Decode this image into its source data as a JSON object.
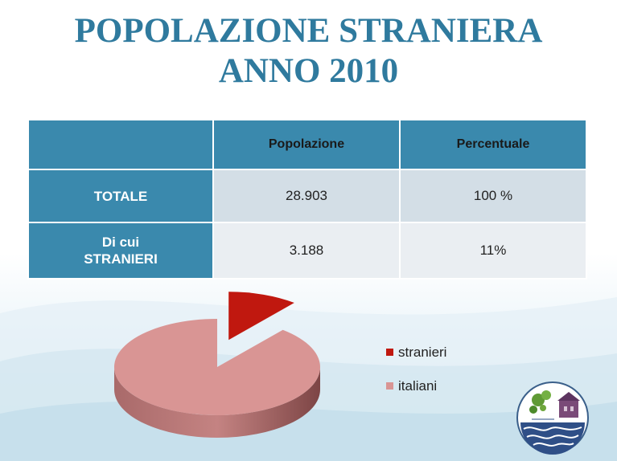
{
  "title": {
    "line1": "POPOLAZIONE STRANIERA",
    "line2": "ANNO 2010"
  },
  "table": {
    "headers": [
      "",
      "Popolazione",
      "Percentuale"
    ],
    "rows": [
      {
        "label": "TOTALE",
        "popolazione": "28.903",
        "percentuale": "100 %"
      },
      {
        "label_line1": "Di cui",
        "label_line2": "STRANIERI",
        "popolazione": "3.188",
        "percentuale": "11%"
      }
    ]
  },
  "chart_data": {
    "type": "pie",
    "style": "3d-exploded",
    "slices": [
      {
        "name": "stranieri",
        "value": 11,
        "color": "#c0180f"
      },
      {
        "name": "italiani",
        "value": 89,
        "color": "#d99594"
      }
    ],
    "legend": {
      "position": "right",
      "entries": [
        "stranieri",
        "italiani"
      ]
    }
  },
  "logo": {
    "text": "ROTALIANA KÖNIGSBERG"
  },
  "colors": {
    "title": "#2f7a9e",
    "table_header": "#3a89ad"
  }
}
